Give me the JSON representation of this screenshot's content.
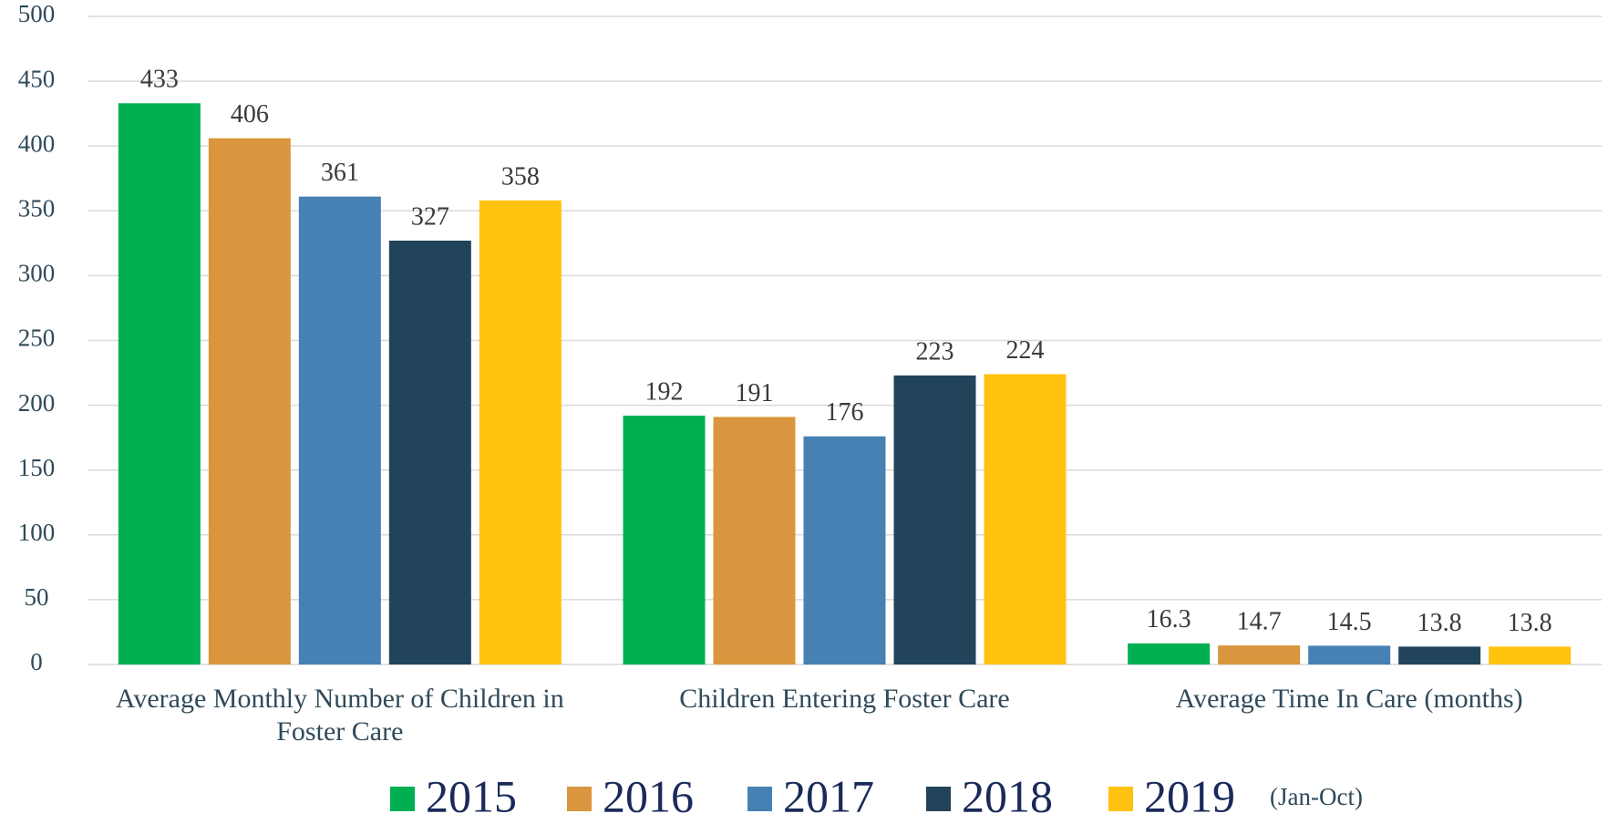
{
  "chart_data": {
    "type": "bar",
    "categories": [
      "Average Monthly Number of Children in Foster Care",
      "Children Entering Foster Care",
      "Average Time In Care (months)"
    ],
    "series": [
      {
        "name": "2015",
        "color": "#00b050",
        "values": [
          433,
          192,
          16.3
        ]
      },
      {
        "name": "2016",
        "color": "#d9963e",
        "values": [
          406,
          191,
          14.7
        ]
      },
      {
        "name": "2017",
        "color": "#4781b3",
        "values": [
          361,
          176,
          14.5
        ]
      },
      {
        "name": "2018",
        "color": "#22445a",
        "values": [
          327,
          223,
          13.8
        ]
      },
      {
        "name": "2019",
        "color": "#ffc20e",
        "values": [
          358,
          224,
          13.8
        ]
      }
    ],
    "legend_note": "(Jan-Oct)",
    "ylim": [
      0,
      500
    ],
    "yticks": [
      0,
      50,
      100,
      150,
      200,
      250,
      300,
      350,
      400,
      450,
      500
    ],
    "grid": true,
    "legend": "bottom"
  }
}
